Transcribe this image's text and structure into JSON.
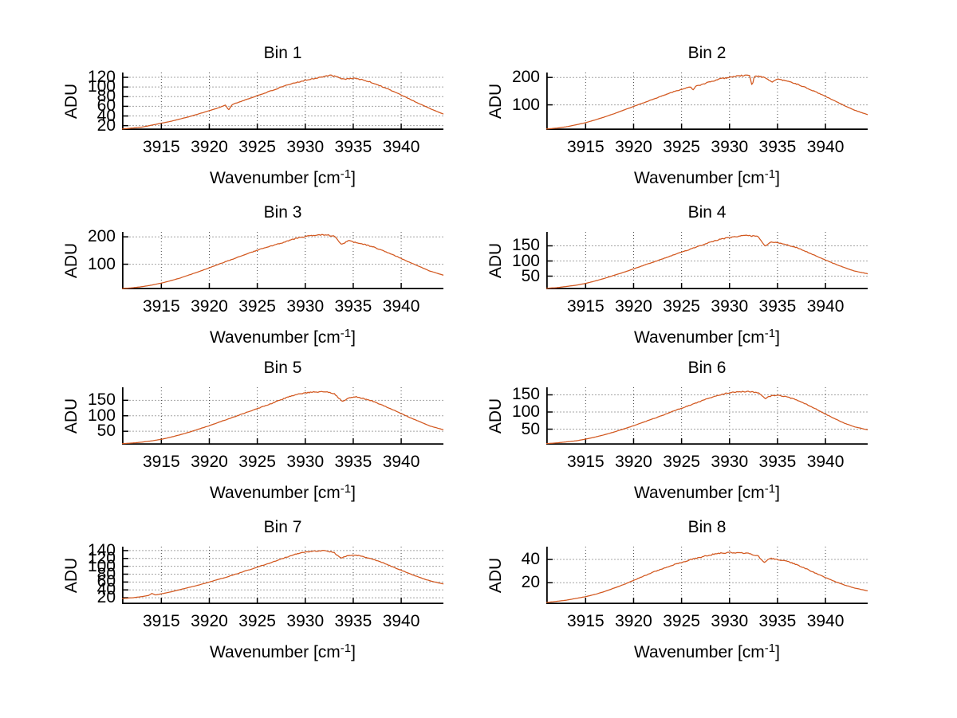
{
  "figure": {
    "background": "#ffffff"
  },
  "axes": {
    "ylabel": "ADU",
    "xlabel": "Wavenumber [cm^-1]",
    "xlabel_prefix": "Wavenumber [cm",
    "xlabel_sup": "-1",
    "xlabel_suffix": "]",
    "xticks": [
      "3915",
      "3920",
      "3925",
      "3930",
      "3935",
      "3940"
    ],
    "xtick_values": [
      3915,
      3920,
      3925,
      3930,
      3935,
      3940
    ],
    "xlim": [
      3910.9,
      3944.4
    ],
    "grid": true,
    "line_color": "#d2571e",
    "grid_color": "#4a4a4a",
    "axis_color": "#000000"
  },
  "chart_data": [
    {
      "type": "line",
      "title": "Bin 1",
      "xlabel": "Wavenumber [cm^-1]",
      "ylabel": "ADU",
      "yticks": [
        20,
        40,
        60,
        80,
        100,
        120
      ],
      "ylim": [
        12,
        130
      ],
      "noise": 1.3,
      "seed": 101,
      "points": [
        [
          3910.9,
          13
        ],
        [
          3912,
          15
        ],
        [
          3913,
          17
        ],
        [
          3914,
          21
        ],
        [
          3915,
          25
        ],
        [
          3916,
          29
        ],
        [
          3917,
          34
        ],
        [
          3918,
          39
        ],
        [
          3919,
          45
        ],
        [
          3920,
          51
        ],
        [
          3921,
          57
        ],
        [
          3921.7,
          63
        ],
        [
          3922,
          52
        ],
        [
          3922.4,
          64
        ],
        [
          3923,
          68
        ],
        [
          3924,
          75
        ],
        [
          3925,
          82
        ],
        [
          3926,
          89
        ],
        [
          3927,
          96
        ],
        [
          3928,
          103
        ],
        [
          3929,
          109
        ],
        [
          3930,
          114
        ],
        [
          3931,
          118
        ],
        [
          3932,
          122
        ],
        [
          3932.7,
          124
        ],
        [
          3933.4,
          120
        ],
        [
          3934,
          116
        ],
        [
          3934.7,
          118
        ],
        [
          3935.5,
          117
        ],
        [
          3936.5,
          112
        ],
        [
          3937.5,
          105
        ],
        [
          3938.5,
          97
        ],
        [
          3939.5,
          88
        ],
        [
          3940.5,
          79
        ],
        [
          3941.5,
          69
        ],
        [
          3942.5,
          60
        ],
        [
          3943.5,
          51
        ],
        [
          3944.4,
          44
        ]
      ]
    },
    {
      "type": "line",
      "title": "Bin 2",
      "xlabel": "Wavenumber [cm^-1]",
      "ylabel": "ADU",
      "yticks": [
        100,
        200
      ],
      "ylim": [
        10,
        218
      ],
      "noise": 2.2,
      "seed": 202,
      "points": [
        [
          3910.9,
          12
        ],
        [
          3912,
          15
        ],
        [
          3913,
          20
        ],
        [
          3914,
          27
        ],
        [
          3915,
          35
        ],
        [
          3916,
          45
        ],
        [
          3917,
          56
        ],
        [
          3918,
          68
        ],
        [
          3919,
          81
        ],
        [
          3920,
          94
        ],
        [
          3921,
          107
        ],
        [
          3922,
          120
        ],
        [
          3923,
          133
        ],
        [
          3924,
          146
        ],
        [
          3925,
          157
        ],
        [
          3925.9,
          166
        ],
        [
          3926.2,
          154
        ],
        [
          3926.5,
          168
        ],
        [
          3927,
          173
        ],
        [
          3928,
          184
        ],
        [
          3929,
          194
        ],
        [
          3930,
          201
        ],
        [
          3931,
          206
        ],
        [
          3932.1,
          208
        ],
        [
          3932.35,
          168
        ],
        [
          3932.6,
          206
        ],
        [
          3933.2,
          204
        ],
        [
          3934,
          194
        ],
        [
          3934.4,
          183
        ],
        [
          3935,
          193
        ],
        [
          3936,
          187
        ],
        [
          3937,
          176
        ],
        [
          3938,
          162
        ],
        [
          3939,
          147
        ],
        [
          3940,
          131
        ],
        [
          3941,
          114
        ],
        [
          3942,
          97
        ],
        [
          3943,
          81
        ],
        [
          3944.4,
          64
        ]
      ]
    },
    {
      "type": "line",
      "title": "Bin 3",
      "xlabel": "Wavenumber [cm^-1]",
      "ylabel": "ADU",
      "yticks": [
        100,
        200
      ],
      "ylim": [
        10,
        218
      ],
      "noise": 2.2,
      "seed": 303,
      "points": [
        [
          3910.9,
          11
        ],
        [
          3912,
          14
        ],
        [
          3913,
          18
        ],
        [
          3914,
          24
        ],
        [
          3915,
          31
        ],
        [
          3916,
          40
        ],
        [
          3917,
          50
        ],
        [
          3918,
          62
        ],
        [
          3919,
          74
        ],
        [
          3920,
          87
        ],
        [
          3921,
          100
        ],
        [
          3922,
          113
        ],
        [
          3923,
          126
        ],
        [
          3924,
          139
        ],
        [
          3925,
          151
        ],
        [
          3926,
          162
        ],
        [
          3927,
          172
        ],
        [
          3928,
          183
        ],
        [
          3929,
          194
        ],
        [
          3930,
          201
        ],
        [
          3931,
          205
        ],
        [
          3932,
          207
        ],
        [
          3933,
          203
        ],
        [
          3933.8,
          172
        ],
        [
          3934.5,
          186
        ],
        [
          3935,
          181
        ],
        [
          3936,
          174
        ],
        [
          3937,
          164
        ],
        [
          3938,
          151
        ],
        [
          3939,
          137
        ],
        [
          3940,
          121
        ],
        [
          3941,
          105
        ],
        [
          3942,
          90
        ],
        [
          3943,
          75
        ],
        [
          3944.4,
          60
        ]
      ]
    },
    {
      "type": "line",
      "title": "Bin 4",
      "xlabel": "Wavenumber [cm^-1]",
      "ylabel": "ADU",
      "yticks": [
        50,
        100,
        150
      ],
      "ylim": [
        8,
        196
      ],
      "noise": 1.8,
      "seed": 404,
      "points": [
        [
          3910.9,
          10
        ],
        [
          3912,
          12
        ],
        [
          3913,
          16
        ],
        [
          3914,
          20
        ],
        [
          3915,
          26
        ],
        [
          3916,
          34
        ],
        [
          3917,
          43
        ],
        [
          3918,
          53
        ],
        [
          3919,
          63
        ],
        [
          3920,
          74
        ],
        [
          3921,
          85
        ],
        [
          3922,
          96
        ],
        [
          3923,
          107
        ],
        [
          3924,
          118
        ],
        [
          3925,
          129
        ],
        [
          3926,
          140
        ],
        [
          3927,
          151
        ],
        [
          3928,
          162
        ],
        [
          3929,
          171
        ],
        [
          3930,
          178
        ],
        [
          3931,
          182
        ],
        [
          3932,
          184
        ],
        [
          3933,
          180
        ],
        [
          3933.7,
          148
        ],
        [
          3934.3,
          163
        ],
        [
          3935,
          160
        ],
        [
          3936,
          153
        ],
        [
          3937,
          144
        ],
        [
          3938,
          131
        ],
        [
          3939,
          117
        ],
        [
          3940,
          103
        ],
        [
          3941,
          90
        ],
        [
          3942,
          78
        ],
        [
          3943,
          67
        ],
        [
          3944.4,
          58
        ]
      ]
    },
    {
      "type": "line",
      "title": "Bin 5",
      "xlabel": "Wavenumber [cm^-1]",
      "ylabel": "ADU",
      "yticks": [
        50,
        100,
        150
      ],
      "ylim": [
        8,
        192
      ],
      "noise": 1.8,
      "seed": 505,
      "points": [
        [
          3910.9,
          10
        ],
        [
          3912,
          12
        ],
        [
          3913,
          15
        ],
        [
          3914,
          19
        ],
        [
          3915,
          24
        ],
        [
          3916,
          31
        ],
        [
          3917,
          39
        ],
        [
          3918,
          48
        ],
        [
          3919,
          58
        ],
        [
          3920,
          68
        ],
        [
          3921,
          79
        ],
        [
          3922,
          90
        ],
        [
          3923,
          101
        ],
        [
          3924,
          112
        ],
        [
          3925,
          123
        ],
        [
          3926,
          134
        ],
        [
          3927,
          146
        ],
        [
          3928,
          158
        ],
        [
          3929,
          168
        ],
        [
          3930,
          174
        ],
        [
          3931,
          177
        ],
        [
          3932,
          178
        ],
        [
          3933,
          172
        ],
        [
          3933.9,
          146
        ],
        [
          3934.6,
          159
        ],
        [
          3935.3,
          162
        ],
        [
          3936,
          156
        ],
        [
          3937,
          147
        ],
        [
          3938,
          135
        ],
        [
          3939,
          121
        ],
        [
          3940,
          107
        ],
        [
          3941,
          93
        ],
        [
          3942,
          80
        ],
        [
          3943,
          67
        ],
        [
          3944.4,
          55
        ]
      ]
    },
    {
      "type": "line",
      "title": "Bin 6",
      "xlabel": "Wavenumber [cm^-1]",
      "ylabel": "ADU",
      "yticks": [
        50,
        100,
        150
      ],
      "ylim": [
        6,
        172
      ],
      "noise": 1.6,
      "seed": 606,
      "points": [
        [
          3910.9,
          8
        ],
        [
          3912,
          10
        ],
        [
          3913,
          13
        ],
        [
          3914,
          16
        ],
        [
          3915,
          21
        ],
        [
          3916,
          27
        ],
        [
          3917,
          34
        ],
        [
          3918,
          42
        ],
        [
          3919,
          51
        ],
        [
          3920,
          60
        ],
        [
          3921,
          70
        ],
        [
          3922,
          80
        ],
        [
          3923,
          90
        ],
        [
          3924,
          101
        ],
        [
          3925,
          111
        ],
        [
          3926,
          121
        ],
        [
          3927,
          131
        ],
        [
          3928,
          142
        ],
        [
          3929,
          150
        ],
        [
          3930,
          156
        ],
        [
          3931,
          159
        ],
        [
          3932,
          160
        ],
        [
          3933,
          156
        ],
        [
          3933.7,
          139
        ],
        [
          3934.4,
          148
        ],
        [
          3935,
          149
        ],
        [
          3936,
          144
        ],
        [
          3937,
          135
        ],
        [
          3938,
          123
        ],
        [
          3939,
          109
        ],
        [
          3940,
          94
        ],
        [
          3941,
          80
        ],
        [
          3942,
          67
        ],
        [
          3943,
          57
        ],
        [
          3944.4,
          48
        ]
      ]
    },
    {
      "type": "line",
      "title": "Bin 7",
      "xlabel": "Wavenumber [cm^-1]",
      "ylabel": "ADU",
      "yticks": [
        20,
        40,
        60,
        80,
        100,
        120,
        140
      ],
      "ylim": [
        5,
        150
      ],
      "noise": 1.1,
      "seed": 707,
      "points": [
        [
          3910.9,
          18
        ],
        [
          3912,
          20
        ],
        [
          3913,
          23
        ],
        [
          3913.7,
          26
        ],
        [
          3914,
          31
        ],
        [
          3914.4,
          27
        ],
        [
          3915,
          30
        ],
        [
          3916,
          35
        ],
        [
          3917,
          41
        ],
        [
          3918,
          47
        ],
        [
          3919,
          53
        ],
        [
          3920,
          60
        ],
        [
          3921,
          67
        ],
        [
          3922,
          74
        ],
        [
          3923,
          82
        ],
        [
          3924,
          90
        ],
        [
          3925,
          98
        ],
        [
          3926,
          106
        ],
        [
          3927,
          114
        ],
        [
          3928,
          123
        ],
        [
          3929,
          131
        ],
        [
          3930,
          136
        ],
        [
          3931,
          139
        ],
        [
          3932,
          140
        ],
        [
          3933,
          135
        ],
        [
          3933.7,
          121
        ],
        [
          3934.5,
          128
        ],
        [
          3935.2,
          129
        ],
        [
          3936,
          125
        ],
        [
          3937,
          118
        ],
        [
          3938,
          110
        ],
        [
          3939,
          100
        ],
        [
          3940,
          90
        ],
        [
          3941,
          80
        ],
        [
          3942,
          71
        ],
        [
          3943,
          63
        ],
        [
          3944.4,
          55
        ]
      ]
    },
    {
      "type": "line",
      "title": "Bin 8",
      "xlabel": "Wavenumber [cm^-1]",
      "ylabel": "ADU",
      "yticks": [
        20,
        40
      ],
      "ylim": [
        2,
        51
      ],
      "noise": 0.55,
      "seed": 808,
      "points": [
        [
          3910.9,
          3
        ],
        [
          3912,
          4
        ],
        [
          3913,
          5
        ],
        [
          3914,
          6.5
        ],
        [
          3915,
          8
        ],
        [
          3916,
          10
        ],
        [
          3917,
          12.5
        ],
        [
          3918,
          15.5
        ],
        [
          3919,
          18.5
        ],
        [
          3920,
          22
        ],
        [
          3921,
          25.5
        ],
        [
          3922,
          29
        ],
        [
          3923,
          32
        ],
        [
          3924,
          35
        ],
        [
          3925,
          37.5
        ],
        [
          3926,
          40
        ],
        [
          3927,
          42
        ],
        [
          3928,
          44
        ],
        [
          3929,
          45.5
        ],
        [
          3930,
          46
        ],
        [
          3931,
          46
        ],
        [
          3932,
          45
        ],
        [
          3933,
          43
        ],
        [
          3933.6,
          37
        ],
        [
          3934.2,
          41
        ],
        [
          3935,
          40
        ],
        [
          3936,
          38.5
        ],
        [
          3937,
          35.5
        ],
        [
          3938,
          32
        ],
        [
          3939,
          28
        ],
        [
          3940,
          24.5
        ],
        [
          3941,
          21
        ],
        [
          3942,
          18
        ],
        [
          3943,
          15.5
        ],
        [
          3944.4,
          13
        ]
      ]
    }
  ]
}
